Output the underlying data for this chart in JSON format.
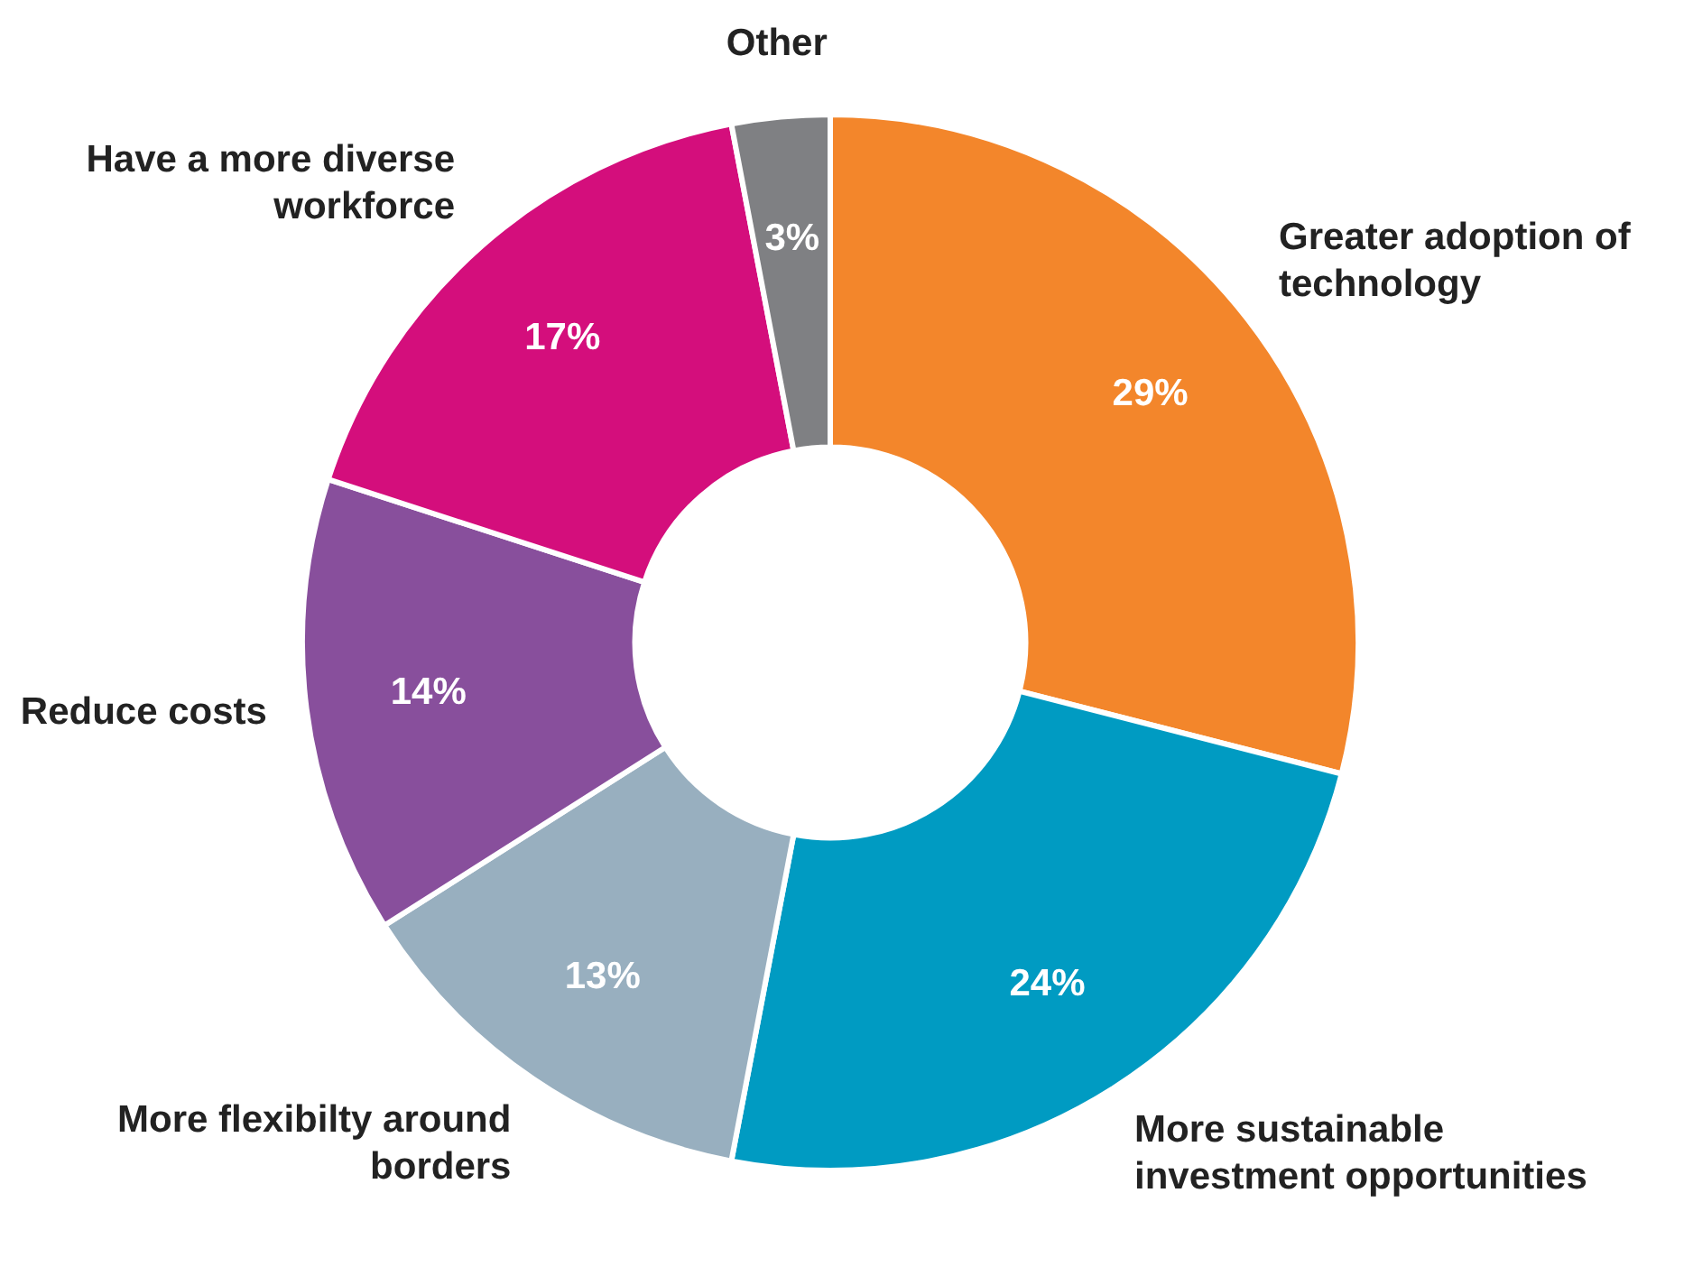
{
  "chart_data": {
    "type": "donut",
    "categories": [
      "Greater adoption of technology",
      "More sustainable investment opportunities",
      "More flexibilty around borders",
      "Reduce costs",
      "Have a more diverse workforce",
      "Other"
    ],
    "values": [
      29,
      24,
      13,
      14,
      17,
      3
    ],
    "value_labels": [
      "29%",
      "24%",
      "13%",
      "14%",
      "17%",
      "3%"
    ],
    "colors": [
      "#f3862b",
      "#009bc2",
      "#98afbf",
      "#884f9c",
      "#d40e7c",
      "#7f8083"
    ],
    "legend": false
  }
}
